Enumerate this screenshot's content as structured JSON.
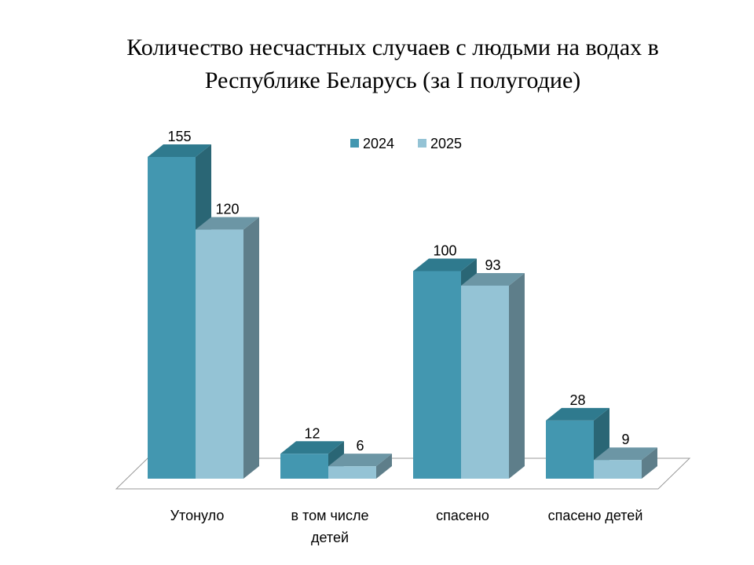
{
  "chart_data": {
    "type": "bar",
    "title": "Количество несчастных случаев с людьми на водах в Республике Беларусь (за I полугодие)",
    "title_lines": [
      "Количество несчастных случаев с людьми на водах в",
      "Республике Беларусь (за I полугодие)"
    ],
    "categories": [
      "Утонуло",
      "в том числе детей",
      "спасено",
      "спасено детей"
    ],
    "category_lines": [
      [
        "Утонуло"
      ],
      [
        "в том числе",
        "детей"
      ],
      [
        "спасено"
      ],
      [
        "спасено детей"
      ]
    ],
    "series": [
      {
        "name": "2024",
        "values": [
          155,
          12,
          100,
          28
        ],
        "color": "#4397b0",
        "top": "#2f7a8e",
        "side": "#2a6675"
      },
      {
        "name": "2025",
        "values": [
          120,
          6,
          93,
          9
        ],
        "color": "#94c3d5",
        "top": "#6c96a5",
        "side": "#5e7e8a"
      }
    ],
    "legend_position": "top",
    "grid": false,
    "ylim": [
      0,
      155
    ]
  }
}
